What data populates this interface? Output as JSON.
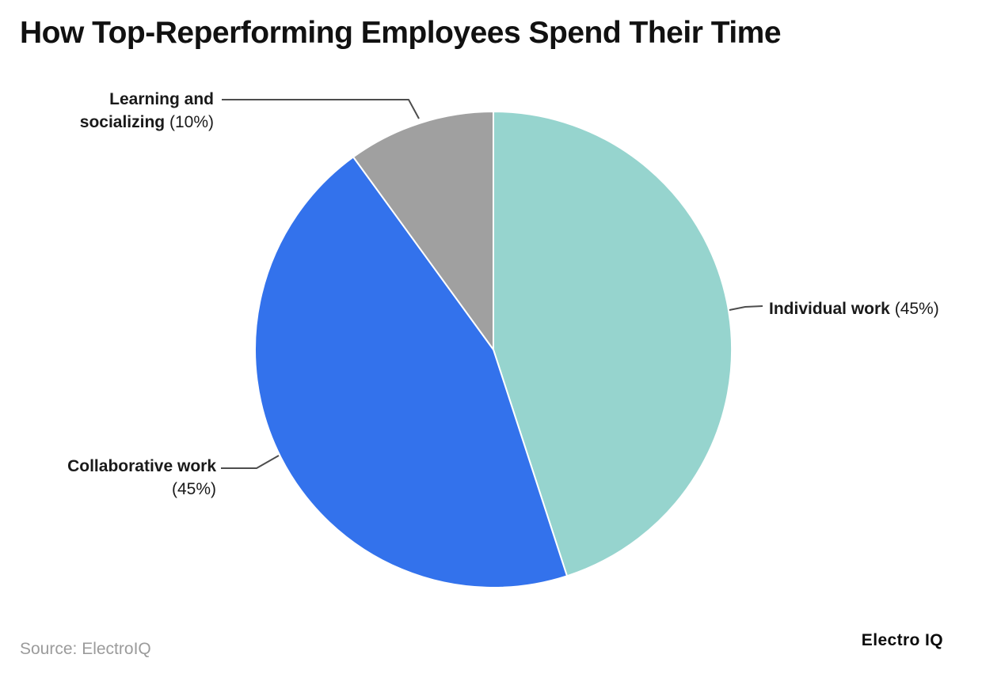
{
  "title": "How Top-Reperforming Employees Spend Their Time",
  "chart_data": {
    "type": "pie",
    "title": "How Top-Reperforming Employees Spend Their Time",
    "start_angle": "12 o'clock",
    "direction": "clockwise",
    "label_style": "external callouts with leader lines",
    "slices": [
      {
        "label": "Individual work",
        "value": 45,
        "color": "#96d4ce"
      },
      {
        "label": "Collaborative work",
        "value": 45,
        "color": "#3372ec"
      },
      {
        "label": "Learning and socializing",
        "value": 10,
        "color": "#a0a0a0"
      }
    ],
    "slice_border_color": "#ffffff",
    "leader_line_color": "#4d4d4d"
  },
  "labels": {
    "individual": {
      "name": "Individual work",
      "pct": "(45%)"
    },
    "collaborative": {
      "name": "Collaborative work",
      "pct": "(45%)"
    },
    "learning": {
      "name_line1": "Learning and",
      "name_line2": "socializing",
      "pct": "(10%)"
    }
  },
  "footer": {
    "source": "Source: ElectroIQ",
    "brand": "Electro IQ"
  }
}
